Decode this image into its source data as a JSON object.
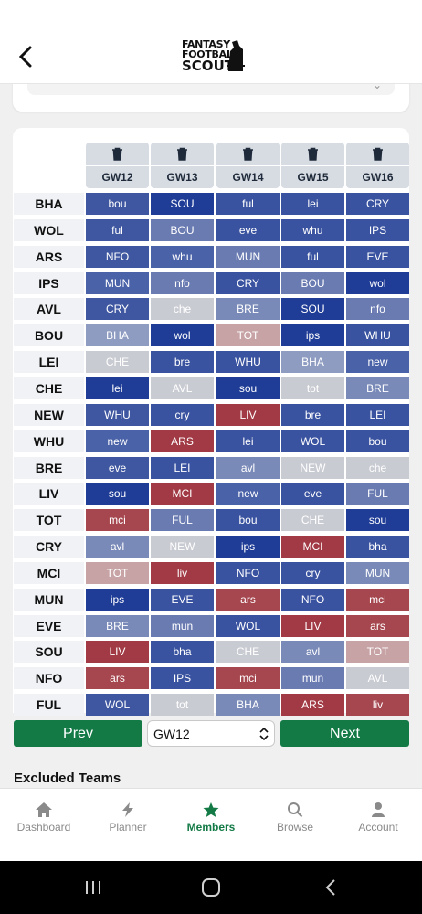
{
  "header": {
    "logo_line1": "FANTASY",
    "logo_line2": "FOOTBALL",
    "logo_line3": "SCOUT"
  },
  "gameweeks": [
    "GW12",
    "GW13",
    "GW14",
    "GW15",
    "GW16"
  ],
  "teams": [
    {
      "name": "BHA",
      "fixtures": [
        [
          "bou",
          "#3f57a0"
        ],
        [
          "SOU",
          "#1f3c96"
        ],
        [
          "ful",
          "#3a53a0"
        ],
        [
          "lei",
          "#3a53a0"
        ],
        [
          "CRY",
          "#3a53a0"
        ]
      ]
    },
    {
      "name": "WOL",
      "fixtures": [
        [
          "ful",
          "#3f57a0"
        ],
        [
          "BOU",
          "#6a7bb2"
        ],
        [
          "eve",
          "#3a53a0"
        ],
        [
          "whu",
          "#3a53a0"
        ],
        [
          "IPS",
          "#3a53a0"
        ]
      ]
    },
    {
      "name": "ARS",
      "fixtures": [
        [
          "NFO",
          "#3f57a0"
        ],
        [
          "whu",
          "#4a62a8"
        ],
        [
          "MUN",
          "#6a7bb2"
        ],
        [
          "ful",
          "#3a53a0"
        ],
        [
          "EVE",
          "#3a53a0"
        ]
      ]
    },
    {
      "name": "IPS",
      "fixtures": [
        [
          "MUN",
          "#4a62a8"
        ],
        [
          "nfo",
          "#6a7bb2"
        ],
        [
          "CRY",
          "#3a53a0"
        ],
        [
          "BOU",
          "#6a7bb2"
        ],
        [
          "wol",
          "#1f3c96"
        ]
      ]
    },
    {
      "name": "AVL",
      "fixtures": [
        [
          "CRY",
          "#3f57a0"
        ],
        [
          "che",
          "#c9cbd2"
        ],
        [
          "BRE",
          "#7a8ab8"
        ],
        [
          "SOU",
          "#1f3c96"
        ],
        [
          "nfo",
          "#6a7bb2"
        ]
      ]
    },
    {
      "name": "BOU",
      "fixtures": [
        [
          "BHA",
          "#8f9cc2"
        ],
        [
          "wol",
          "#1f3c96"
        ],
        [
          "TOT",
          "#c7a3a6"
        ],
        [
          "ips",
          "#1f3c96"
        ],
        [
          "WHU",
          "#3a53a0"
        ]
      ]
    },
    {
      "name": "LEI",
      "fixtures": [
        [
          "CHE",
          "#c9cbd2"
        ],
        [
          "bre",
          "#3a53a0"
        ],
        [
          "WHU",
          "#3a53a0"
        ],
        [
          "BHA",
          "#8f9cc2"
        ],
        [
          "new",
          "#4a62a8"
        ]
      ]
    },
    {
      "name": "CHE",
      "fixtures": [
        [
          "lei",
          "#1f3c96"
        ],
        [
          "AVL",
          "#c9cbd2"
        ],
        [
          "sou",
          "#1f3c96"
        ],
        [
          "tot",
          "#c9cbd2"
        ],
        [
          "BRE",
          "#7a8ab8"
        ]
      ]
    },
    {
      "name": "NEW",
      "fixtures": [
        [
          "WHU",
          "#3f57a0"
        ],
        [
          "cry",
          "#3a53a0"
        ],
        [
          "LIV",
          "#a13a45"
        ],
        [
          "bre",
          "#3a53a0"
        ],
        [
          "LEI",
          "#3a53a0"
        ]
      ]
    },
    {
      "name": "WHU",
      "fixtures": [
        [
          "new",
          "#4a62a8"
        ],
        [
          "ARS",
          "#a13a45"
        ],
        [
          "lei",
          "#3a53a0"
        ],
        [
          "WOL",
          "#3a53a0"
        ],
        [
          "bou",
          "#3a53a0"
        ]
      ]
    },
    {
      "name": "BRE",
      "fixtures": [
        [
          "eve",
          "#3f57a0"
        ],
        [
          "LEI",
          "#3a53a0"
        ],
        [
          "avl",
          "#7a8ab8"
        ],
        [
          "NEW",
          "#c9cbd2"
        ],
        [
          "che",
          "#c9cbd2"
        ]
      ]
    },
    {
      "name": "LIV",
      "fixtures": [
        [
          "sou",
          "#1f3c96"
        ],
        [
          "MCI",
          "#a13a45"
        ],
        [
          "new",
          "#4a62a8"
        ],
        [
          "eve",
          "#3a53a0"
        ],
        [
          "FUL",
          "#6a7bb2"
        ]
      ]
    },
    {
      "name": "TOT",
      "fixtures": [
        [
          "mci",
          "#a6474f"
        ],
        [
          "FUL",
          "#6a7bb2"
        ],
        [
          "bou",
          "#3a53a0"
        ],
        [
          "CHE",
          "#c9cbd2"
        ],
        [
          "sou",
          "#1f3c96"
        ]
      ]
    },
    {
      "name": "CRY",
      "fixtures": [
        [
          "avl",
          "#7a8ab8"
        ],
        [
          "NEW",
          "#c9cbd2"
        ],
        [
          "ips",
          "#1f3c96"
        ],
        [
          "MCI",
          "#a13a45"
        ],
        [
          "bha",
          "#3a53a0"
        ]
      ]
    },
    {
      "name": "MCI",
      "fixtures": [
        [
          "TOT",
          "#c7a3a6"
        ],
        [
          "liv",
          "#a13a45"
        ],
        [
          "NFO",
          "#3a53a0"
        ],
        [
          "cry",
          "#3a53a0"
        ],
        [
          "MUN",
          "#7a8ab8"
        ]
      ]
    },
    {
      "name": "MUN",
      "fixtures": [
        [
          "ips",
          "#1f3c96"
        ],
        [
          "EVE",
          "#3a53a0"
        ],
        [
          "ars",
          "#a6474f"
        ],
        [
          "NFO",
          "#3a53a0"
        ],
        [
          "mci",
          "#a6474f"
        ]
      ]
    },
    {
      "name": "EVE",
      "fixtures": [
        [
          "BRE",
          "#7a8ab8"
        ],
        [
          "mun",
          "#6a7bb2"
        ],
        [
          "WOL",
          "#3a53a0"
        ],
        [
          "LIV",
          "#a13a45"
        ],
        [
          "ars",
          "#a6474f"
        ]
      ]
    },
    {
      "name": "SOU",
      "fixtures": [
        [
          "LIV",
          "#a13a45"
        ],
        [
          "bha",
          "#3a53a0"
        ],
        [
          "CHE",
          "#c9cbd2"
        ],
        [
          "avl",
          "#7a8ab8"
        ],
        [
          "TOT",
          "#c7a3a6"
        ]
      ]
    },
    {
      "name": "NFO",
      "fixtures": [
        [
          "ars",
          "#a6474f"
        ],
        [
          "IPS",
          "#3a53a0"
        ],
        [
          "mci",
          "#a6474f"
        ],
        [
          "mun",
          "#6a7bb2"
        ],
        [
          "AVL",
          "#c9cbd2"
        ]
      ]
    },
    {
      "name": "FUL",
      "fixtures": [
        [
          "WOL",
          "#3f57a0"
        ],
        [
          "tot",
          "#c9cbd2"
        ],
        [
          "BHA",
          "#7a8ab8"
        ],
        [
          "ARS",
          "#a13a45"
        ],
        [
          "liv",
          "#a6474f"
        ]
      ]
    }
  ],
  "pager": {
    "prev_label": "Prev",
    "next_label": "Next",
    "selected_gw": "GW12"
  },
  "excluded_title": "Excluded Teams",
  "tabs": [
    {
      "label": "Dashboard",
      "icon": "home-icon"
    },
    {
      "label": "Planner",
      "icon": "lightning-icon"
    },
    {
      "label": "Members",
      "icon": "star-icon",
      "active": true
    },
    {
      "label": "Browse",
      "icon": "search-icon"
    },
    {
      "label": "Account",
      "icon": "person-icon"
    }
  ],
  "colors": {
    "accent_green": "#137a46",
    "header_cell": "#d7dbe2"
  }
}
